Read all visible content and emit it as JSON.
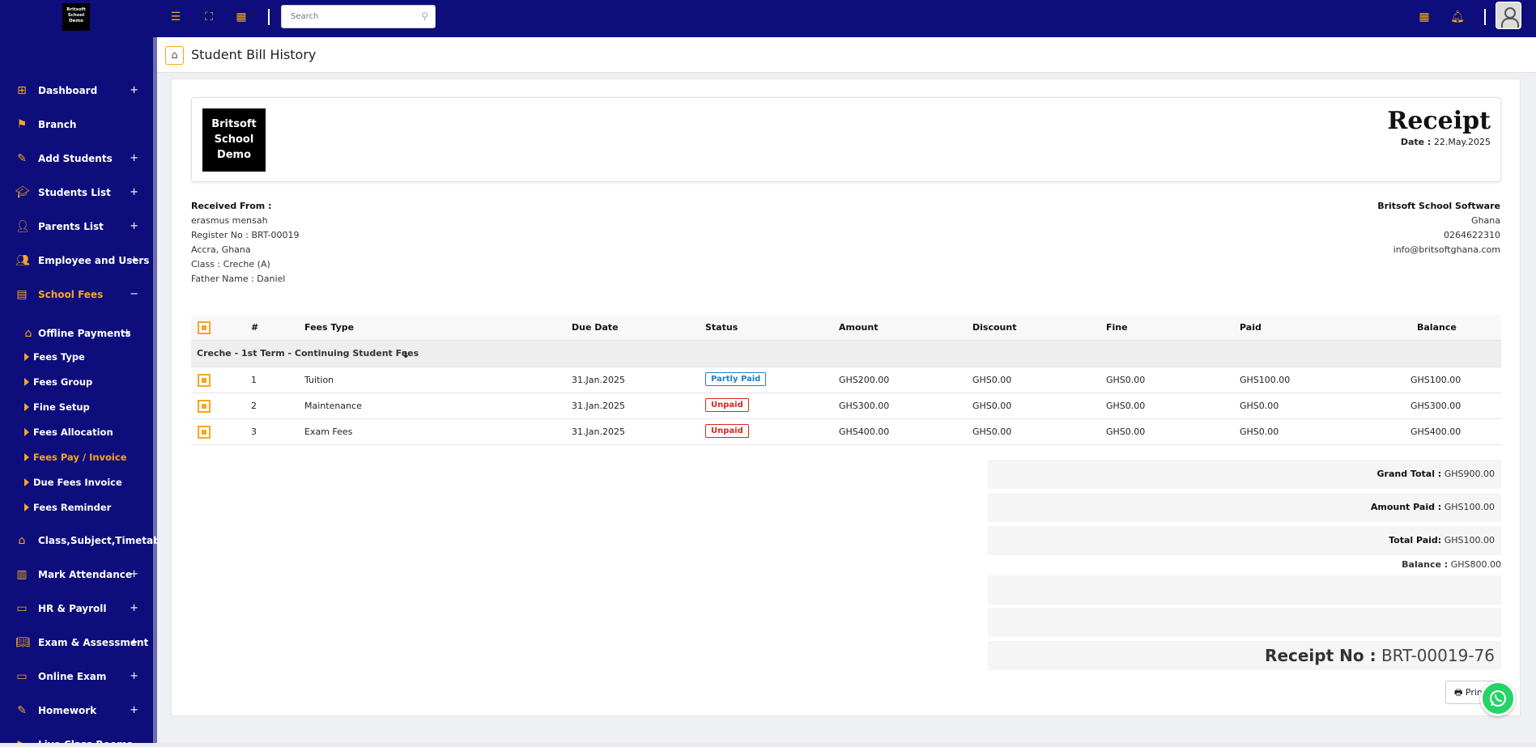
{
  "topbar": {
    "logo_text": "Britsoft School Demo",
    "search_placeholder": "Search",
    "icons": [
      "menu-icon",
      "fullscreen-icon",
      "calendar-icon",
      "calendar-icon",
      "bell-icon",
      "user-avatar"
    ]
  },
  "sidebar": {
    "items": [
      {
        "label": "Dashboard",
        "icon": "dashboard-icon",
        "expand": "+"
      },
      {
        "label": "Branch",
        "icon": "branch-icon",
        "expand": ""
      },
      {
        "label": "Add Students",
        "icon": "edit-icon",
        "expand": "+"
      },
      {
        "label": "Students List",
        "icon": "graduation-cap-icon",
        "expand": "+"
      },
      {
        "label": "Parents List",
        "icon": "user-icon",
        "expand": "+"
      },
      {
        "label": "Employee and Users",
        "icon": "users-icon",
        "expand": "+"
      },
      {
        "label": "School Fees",
        "icon": "invoice-icon",
        "expand": "−"
      }
    ],
    "offline_payments": {
      "label": "Offline Payments",
      "expand": "+"
    },
    "sub_items": [
      {
        "label": "Fees Type"
      },
      {
        "label": "Fees Group"
      },
      {
        "label": "Fine Setup"
      },
      {
        "label": "Fees Allocation"
      },
      {
        "label": "Fees Pay / Invoice"
      },
      {
        "label": "Due Fees Invoice"
      },
      {
        "label": "Fees Reminder"
      }
    ],
    "items_after": [
      {
        "label": "Class,Subject,Timetable",
        "icon": "home-icon",
        "expand": ""
      },
      {
        "label": "Mark Attendance",
        "icon": "chart-icon",
        "expand": "+"
      },
      {
        "label": "HR & Payroll",
        "icon": "money-icon",
        "expand": "+"
      },
      {
        "label": "Exam & Assessment",
        "icon": "book-icon",
        "expand": "+"
      },
      {
        "label": "Online Exam",
        "icon": "monitor-icon",
        "expand": "+"
      },
      {
        "label": "Homework",
        "icon": "edit-icon",
        "expand": "+"
      },
      {
        "label": "Live Class Rooms",
        "icon": "video-icon",
        "expand": ""
      }
    ]
  },
  "header": {
    "title": "Student Bill History"
  },
  "receipt": {
    "logo_text": "Britsoft School Demo",
    "title": "Receipt",
    "date_label": "Date :",
    "date_value": "22.May.2025",
    "received_from_label": "Received From :",
    "from_name": "erasmus mensah",
    "register_no": "Register No : BRT-00019",
    "address": "Accra, Ghana",
    "class": "Class : Creche (A)",
    "father": "Father Name : Daniel",
    "company_name": "Britsoft School Software",
    "company_country": "Ghana",
    "company_phone": "0264622310",
    "company_email": "info@britsoftghana.com"
  },
  "table": {
    "headers": [
      "#",
      "Fees Type",
      "Due Date",
      "Status",
      "Amount",
      "Discount",
      "Fine",
      "Paid",
      "Balance"
    ],
    "group": "Creche - 1st Term - Continuing Student Fees",
    "rows": [
      {
        "no": "1",
        "type": "Tuition",
        "due": "31.Jan.2025",
        "status": "Partly Paid",
        "amount": "GHS200.00",
        "discount": "GHS0.00",
        "fine": "GHS0.00",
        "paid": "GHS100.00",
        "balance": "GHS100.00"
      },
      {
        "no": "2",
        "type": "Maintenance",
        "due": "31.Jan.2025",
        "status": "Unpaid",
        "amount": "GHS300.00",
        "discount": "GHS0.00",
        "fine": "GHS0.00",
        "paid": "GHS0.00",
        "balance": "GHS300.00"
      },
      {
        "no": "3",
        "type": "Exam Fees",
        "due": "31.Jan.2025",
        "status": "Unpaid",
        "amount": "GHS400.00",
        "discount": "GHS0.00",
        "fine": "GHS0.00",
        "paid": "GHS0.00",
        "balance": "GHS400.00"
      }
    ]
  },
  "totals": {
    "grand_total_label": "Grand Total :",
    "grand_total": "GHS900.00",
    "amount_paid_label": "Amount Paid :",
    "amount_paid": "GHS100.00",
    "total_paid_label": "Total Paid:",
    "total_paid": "GHS100.00",
    "balance_label": "Balance :",
    "balance": "GHS800.00",
    "receipt_no_label": "Receipt No :",
    "receipt_no": "BRT-00019-76"
  },
  "actions": {
    "print_label": "Print"
  },
  "colors": {
    "nav_bg": "#0d0d7c",
    "accent": "#f5a623",
    "partly": "#1f7fc4",
    "unpaid": "#d9261c",
    "whatsapp": "#25d366"
  }
}
